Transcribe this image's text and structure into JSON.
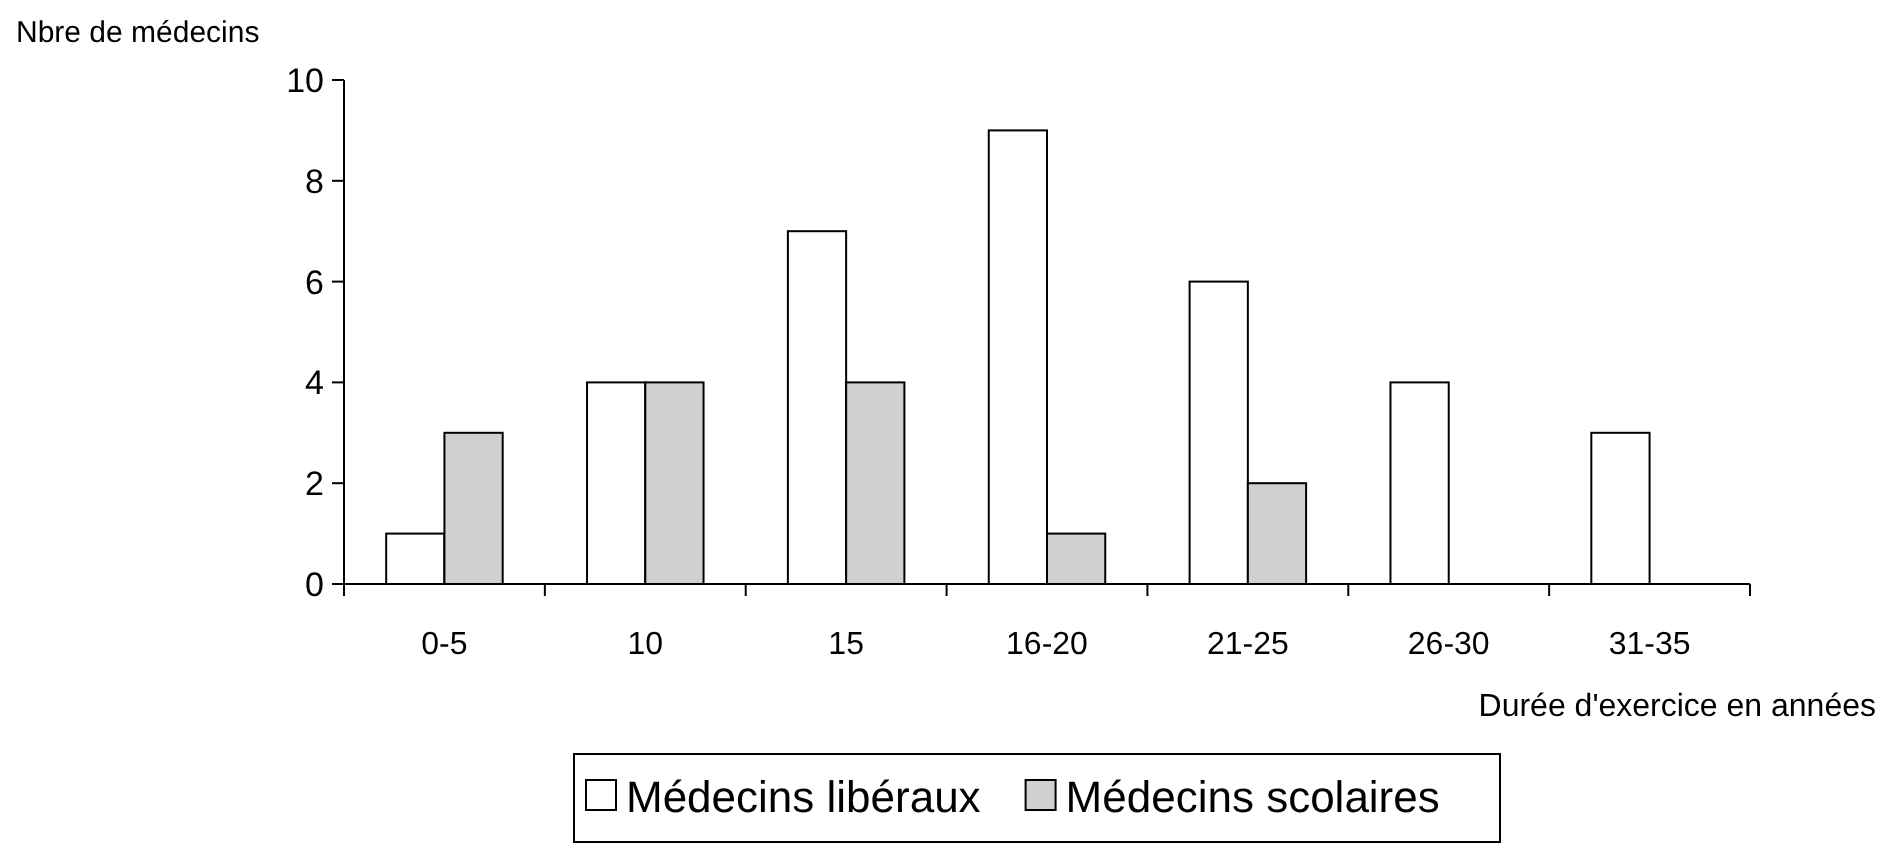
{
  "chart_data": {
    "type": "bar",
    "ylabel": "Nbre de médecins",
    "xlabel": "Durée d'exercice en années",
    "categories": [
      "0-5",
      "10",
      "15",
      "16-20",
      "21-25",
      "26-30",
      "31-35"
    ],
    "series": [
      {
        "name": "Médecins libéraux",
        "color": "#ffffff",
        "values": [
          1,
          4,
          7,
          9,
          6,
          4,
          3
        ]
      },
      {
        "name": "Médecins scolaires",
        "color": "#d0d0d0",
        "values": [
          3,
          4,
          4,
          1,
          2,
          0,
          0
        ]
      }
    ],
    "ylim": [
      0,
      10
    ],
    "yticks": [
      0,
      2,
      4,
      6,
      8,
      10
    ],
    "grid": false,
    "legend": "bottom"
  }
}
